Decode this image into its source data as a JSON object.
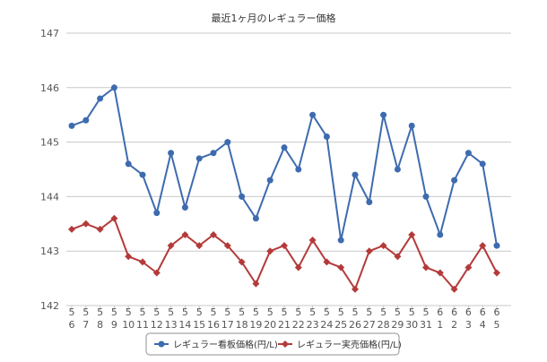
{
  "chart_data": {
    "type": "line",
    "title": "最近1ヶ月のレギュラー価格",
    "xlabel": "",
    "ylabel": "",
    "ylim": [
      142,
      147
    ],
    "yticks": [
      142,
      143,
      144,
      145,
      146,
      147
    ],
    "grid": true,
    "legend_position": "bottom",
    "categories": [
      {
        "m": "5",
        "d": "6"
      },
      {
        "m": "5",
        "d": "7"
      },
      {
        "m": "5",
        "d": "8"
      },
      {
        "m": "5",
        "d": "9"
      },
      {
        "m": "5",
        "d": "10"
      },
      {
        "m": "5",
        "d": "11"
      },
      {
        "m": "5",
        "d": "12"
      },
      {
        "m": "5",
        "d": "13"
      },
      {
        "m": "5",
        "d": "14"
      },
      {
        "m": "5",
        "d": "15"
      },
      {
        "m": "5",
        "d": "16"
      },
      {
        "m": "5",
        "d": "17"
      },
      {
        "m": "5",
        "d": "18"
      },
      {
        "m": "5",
        "d": "19"
      },
      {
        "m": "5",
        "d": "20"
      },
      {
        "m": "5",
        "d": "21"
      },
      {
        "m": "5",
        "d": "22"
      },
      {
        "m": "5",
        "d": "23"
      },
      {
        "m": "5",
        "d": "24"
      },
      {
        "m": "5",
        "d": "25"
      },
      {
        "m": "5",
        "d": "26"
      },
      {
        "m": "5",
        "d": "27"
      },
      {
        "m": "5",
        "d": "28"
      },
      {
        "m": "5",
        "d": "29"
      },
      {
        "m": "5",
        "d": "30"
      },
      {
        "m": "5",
        "d": "31"
      },
      {
        "m": "6",
        "d": "1"
      },
      {
        "m": "6",
        "d": "2"
      },
      {
        "m": "6",
        "d": "3"
      },
      {
        "m": "6",
        "d": "4"
      },
      {
        "m": "6",
        "d": "5"
      }
    ],
    "series": [
      {
        "name": "レギュラー看板価格(円/L)",
        "color": "#3E6BAF",
        "marker": "circle",
        "values": [
          145.3,
          145.4,
          145.8,
          146.0,
          144.6,
          144.4,
          143.7,
          144.8,
          143.8,
          144.7,
          144.8,
          145.0,
          144.0,
          143.6,
          144.3,
          144.9,
          144.5,
          145.5,
          145.1,
          143.2,
          144.4,
          143.9,
          145.5,
          144.5,
          145.3,
          144.0,
          143.3,
          144.3,
          144.8,
          144.6,
          143.1
        ]
      },
      {
        "name": "レギュラー実売価格(円/L)",
        "color": "#B43A3A",
        "marker": "diamond",
        "values": [
          143.4,
          143.5,
          143.4,
          143.6,
          142.9,
          142.8,
          142.6,
          143.1,
          143.3,
          143.1,
          143.3,
          143.1,
          142.8,
          142.4,
          143.0,
          143.1,
          142.7,
          143.2,
          142.8,
          142.7,
          142.3,
          143.0,
          143.1,
          142.9,
          143.3,
          142.7,
          142.6,
          142.3,
          142.7,
          143.1,
          142.6
        ]
      }
    ]
  }
}
